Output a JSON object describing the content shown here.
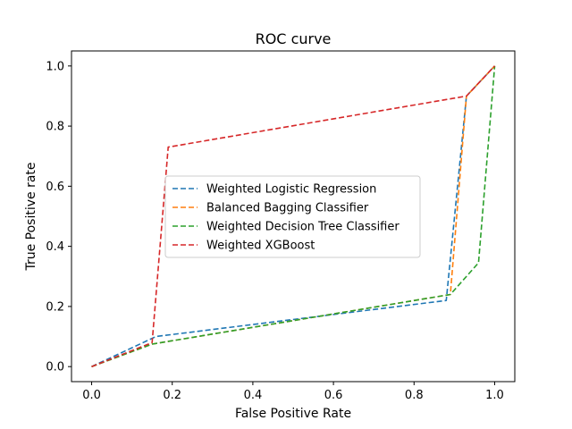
{
  "chart_data": {
    "type": "line",
    "title": "ROC curve",
    "xlabel": "False Positive Rate",
    "ylabel": "True Positive rate",
    "xlim": [
      -0.05,
      1.05
    ],
    "ylim": [
      -0.05,
      1.05
    ],
    "xticks": [
      0.0,
      0.2,
      0.4,
      0.6,
      0.8,
      1.0
    ],
    "yticks": [
      0.0,
      0.2,
      0.4,
      0.6,
      0.8,
      1.0
    ],
    "xtick_labels": [
      "0.0",
      "0.2",
      "0.4",
      "0.6",
      "0.8",
      "1.0"
    ],
    "ytick_labels": [
      "0.0",
      "0.2",
      "0.4",
      "0.6",
      "0.8",
      "1.0"
    ],
    "grid": false,
    "legend_position": "center",
    "line_style": "dashed",
    "series": [
      {
        "name": "Weighted Logistic Regression",
        "color": "#1f77b4",
        "x": [
          0.0,
          0.16,
          0.88,
          0.93,
          1.0
        ],
        "y": [
          0.0,
          0.1,
          0.22,
          0.9,
          1.0
        ]
      },
      {
        "name": "Balanced Bagging Classifier",
        "color": "#ff7f0e",
        "x": [
          0.0,
          0.15,
          0.89,
          0.93,
          1.0
        ],
        "y": [
          0.0,
          0.075,
          0.24,
          0.9,
          1.0
        ]
      },
      {
        "name": "Weighted Decision Tree Classifier",
        "color": "#2ca02c",
        "x": [
          0.0,
          0.15,
          0.89,
          0.96,
          1.0
        ],
        "y": [
          0.0,
          0.075,
          0.24,
          0.345,
          1.0
        ]
      },
      {
        "name": "Weighted XGBoost",
        "color": "#d62728",
        "x": [
          0.0,
          0.15,
          0.19,
          0.93,
          1.0
        ],
        "y": [
          0.0,
          0.08,
          0.73,
          0.9,
          1.0
        ]
      }
    ]
  }
}
